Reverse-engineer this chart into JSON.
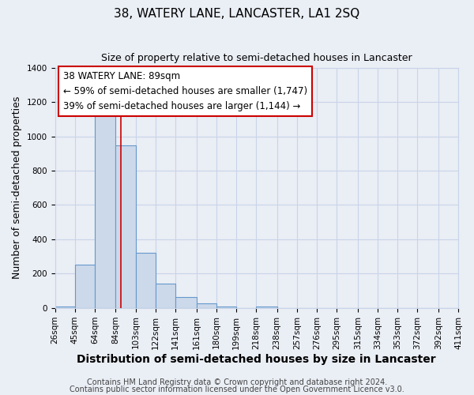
{
  "title": "38, WATERY LANE, LANCASTER, LA1 2SQ",
  "subtitle": "Size of property relative to semi-detached houses in Lancaster",
  "xlabel": "Distribution of semi-detached houses by size in Lancaster",
  "ylabel": "Number of semi-detached properties",
  "bin_edges": [
    26,
    45,
    64,
    84,
    103,
    122,
    141,
    161,
    180,
    199,
    218,
    238,
    257,
    276,
    295,
    315,
    334,
    353,
    372,
    392,
    411
  ],
  "bar_heights": [
    10,
    250,
    1150,
    950,
    320,
    140,
    65,
    25,
    10,
    0,
    10,
    0,
    0,
    0,
    0,
    0,
    0,
    0,
    0,
    0
  ],
  "bar_color": "#ccd9ea",
  "bar_edge_color": "#6699cc",
  "property_size": 89,
  "property_label": "38 WATERY LANE: 89sqm",
  "annotation_line1": "← 59% of semi-detached houses are smaller (1,747)",
  "annotation_line2": "39% of semi-detached houses are larger (1,144) →",
  "annotation_box_color": "#ffffff",
  "annotation_box_edge": "#cc0000",
  "vline_color": "#cc0000",
  "ylim": [
    0,
    1400
  ],
  "yticks": [
    0,
    200,
    400,
    600,
    800,
    1000,
    1200,
    1400
  ],
  "footer1": "Contains HM Land Registry data © Crown copyright and database right 2024.",
  "footer2": "Contains public sector information licensed under the Open Government Licence v3.0.",
  "title_fontsize": 11,
  "subtitle_fontsize": 9,
  "xlabel_fontsize": 10,
  "ylabel_fontsize": 9,
  "tick_fontsize": 7.5,
  "annotation_fontsize": 8.5,
  "footer_fontsize": 7,
  "grid_color": "#c8d4e8",
  "background_color": "#eaeef5"
}
